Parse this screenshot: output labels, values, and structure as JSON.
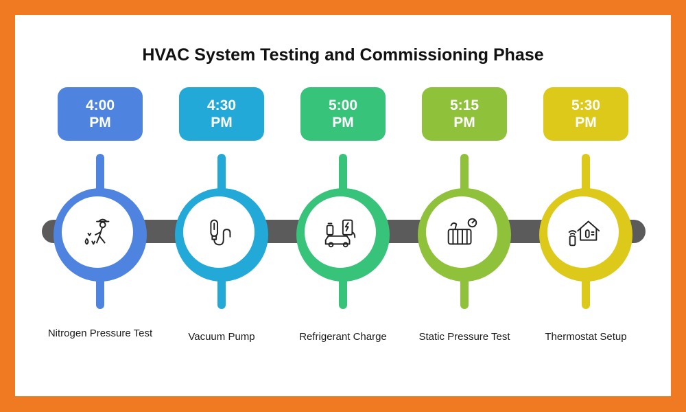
{
  "title": "HVAC System Testing and Commissioning Phase",
  "steps": [
    {
      "time": "4:00",
      "period": "PM",
      "label": "Nitrogen Pressure Test",
      "color": "#4e84e0",
      "icon": "technician-pressure-icon"
    },
    {
      "time": "4:30",
      "period": "PM",
      "label": "Vacuum Pump",
      "color": "#22a9d8",
      "icon": "vacuum-pump-icon"
    },
    {
      "time": "5:00",
      "period": "PM",
      "label": "Refrigerant Charge",
      "color": "#37c47a",
      "icon": "refrigerant-charge-icon"
    },
    {
      "time": "5:15",
      "period": "PM",
      "label": "Static Pressure Test",
      "color": "#8fc13a",
      "icon": "pressure-gauge-icon"
    },
    {
      "time": "5:30",
      "period": "PM",
      "label": "Thermostat Setup",
      "color": "#dcc91a",
      "icon": "smart-thermostat-icon"
    }
  ]
}
